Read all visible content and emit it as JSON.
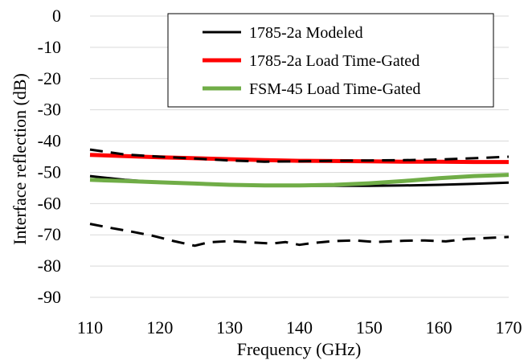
{
  "chart_data": {
    "type": "line",
    "title": "",
    "xlabel": "Frequency (GHz)",
    "ylabel": "Interface reflection (dB)",
    "xlim": [
      110,
      170
    ],
    "ylim": [
      -90,
      0
    ],
    "x_ticks": [
      110,
      120,
      130,
      140,
      150,
      160,
      170
    ],
    "y_ticks": [
      0,
      -10,
      -20,
      -30,
      -40,
      -50,
      -60,
      -70,
      -80,
      -90
    ],
    "x_tick_labels": [
      "110",
      "120",
      "130",
      "140",
      "150",
      "160",
      "170"
    ],
    "y_tick_labels": [
      "0",
      "-10",
      "-20",
      "-30",
      "-40",
      "-50",
      "-60",
      "-70",
      "-80",
      "-90"
    ],
    "grid": "horizontal",
    "legend_position": "top-right",
    "series": [
      {
        "name": "1785-2a Modeled",
        "color": "#000000",
        "style": "solid",
        "x": [
          110,
          115,
          120,
          125,
          130,
          135,
          140,
          145,
          150,
          155,
          160,
          165,
          170
        ],
        "y": [
          -51.2,
          -52.4,
          -53.2,
          -53.6,
          -54.0,
          -54.2,
          -54.3,
          -54.3,
          -54.3,
          -54.2,
          -54.0,
          -53.7,
          -53.3
        ]
      },
      {
        "name": "1785-2a Load Time-Gated",
        "color": "#ff0000",
        "style": "solid",
        "x": [
          110,
          115,
          120,
          125,
          130,
          135,
          140,
          145,
          150,
          155,
          160,
          165,
          170
        ],
        "y": [
          -44.4,
          -44.8,
          -45.2,
          -45.5,
          -45.8,
          -46.1,
          -46.3,
          -46.4,
          -46.5,
          -46.6,
          -46.6,
          -46.7,
          -46.7
        ]
      },
      {
        "name": "FSM-45 Load Time-Gated",
        "color": "#70ad47",
        "style": "solid",
        "x": [
          110,
          115,
          120,
          125,
          130,
          135,
          140,
          145,
          150,
          155,
          160,
          165,
          170
        ],
        "y": [
          -52.4,
          -52.8,
          -53.2,
          -53.6,
          -54.0,
          -54.2,
          -54.2,
          -54.0,
          -53.5,
          -52.8,
          -51.9,
          -51.2,
          -50.8
        ]
      },
      {
        "name": "",
        "color": "#000000",
        "style": "dashed",
        "x": [
          110,
          115,
          120,
          125,
          130,
          135,
          140,
          145,
          150,
          155,
          160,
          165,
          170
        ],
        "y": [
          -42.7,
          -44.3,
          -45.0,
          -45.6,
          -46.2,
          -46.6,
          -46.5,
          -46.3,
          -46.2,
          -46.1,
          -45.9,
          -45.5,
          -45.0
        ]
      },
      {
        "name": "",
        "color": "#000000",
        "style": "dashed",
        "x": [
          110,
          113,
          116,
          119,
          122,
          125,
          127,
          130,
          133,
          136,
          138,
          140,
          142,
          145,
          148,
          151,
          155,
          158,
          161,
          164,
          167,
          170
        ],
        "y": [
          -66.5,
          -67.8,
          -69.0,
          -70.3,
          -72.0,
          -73.5,
          -72.4,
          -72.0,
          -72.4,
          -72.8,
          -72.3,
          -73.2,
          -72.6,
          -72.0,
          -71.8,
          -72.3,
          -71.9,
          -71.8,
          -72.1,
          -71.3,
          -71.0,
          -70.7
        ]
      }
    ]
  }
}
